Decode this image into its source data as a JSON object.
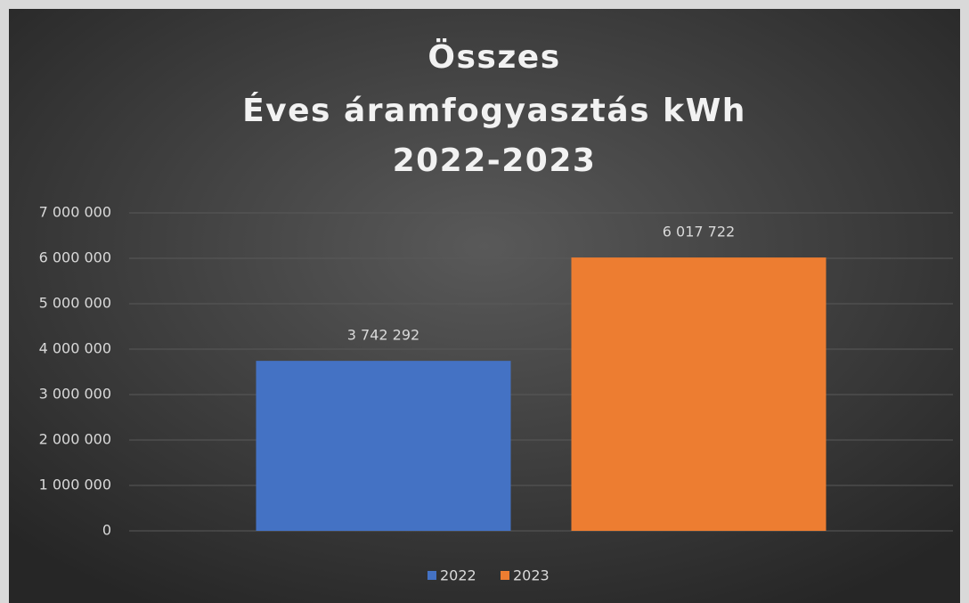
{
  "chart_data": {
    "type": "bar",
    "title": [
      "Összes",
      "Éves áramfogyasztás kWh",
      "2022-2023"
    ],
    "categories": [
      null
    ],
    "series": [
      {
        "name": "2022",
        "color": "#4472c4",
        "values": [
          3742292
        ],
        "value_labels": [
          "3 742 292"
        ]
      },
      {
        "name": "2023",
        "color": "#ed7d31",
        "values": [
          6017722
        ],
        "value_labels": [
          "6 017 722"
        ]
      }
    ],
    "ylim": [
      0,
      7000000
    ],
    "yticks": [
      {
        "value": 0,
        "label": "0"
      },
      {
        "value": 1000000,
        "label": "1 000 000"
      },
      {
        "value": 2000000,
        "label": "2 000 000"
      },
      {
        "value": 3000000,
        "label": "3 000 000"
      },
      {
        "value": 4000000,
        "label": "4 000 000"
      },
      {
        "value": 5000000,
        "label": "5 000 000"
      },
      {
        "value": 6000000,
        "label": "6 000 000"
      },
      {
        "value": 7000000,
        "label": "7 000 000"
      }
    ],
    "grid": true,
    "legend": "bottom"
  }
}
